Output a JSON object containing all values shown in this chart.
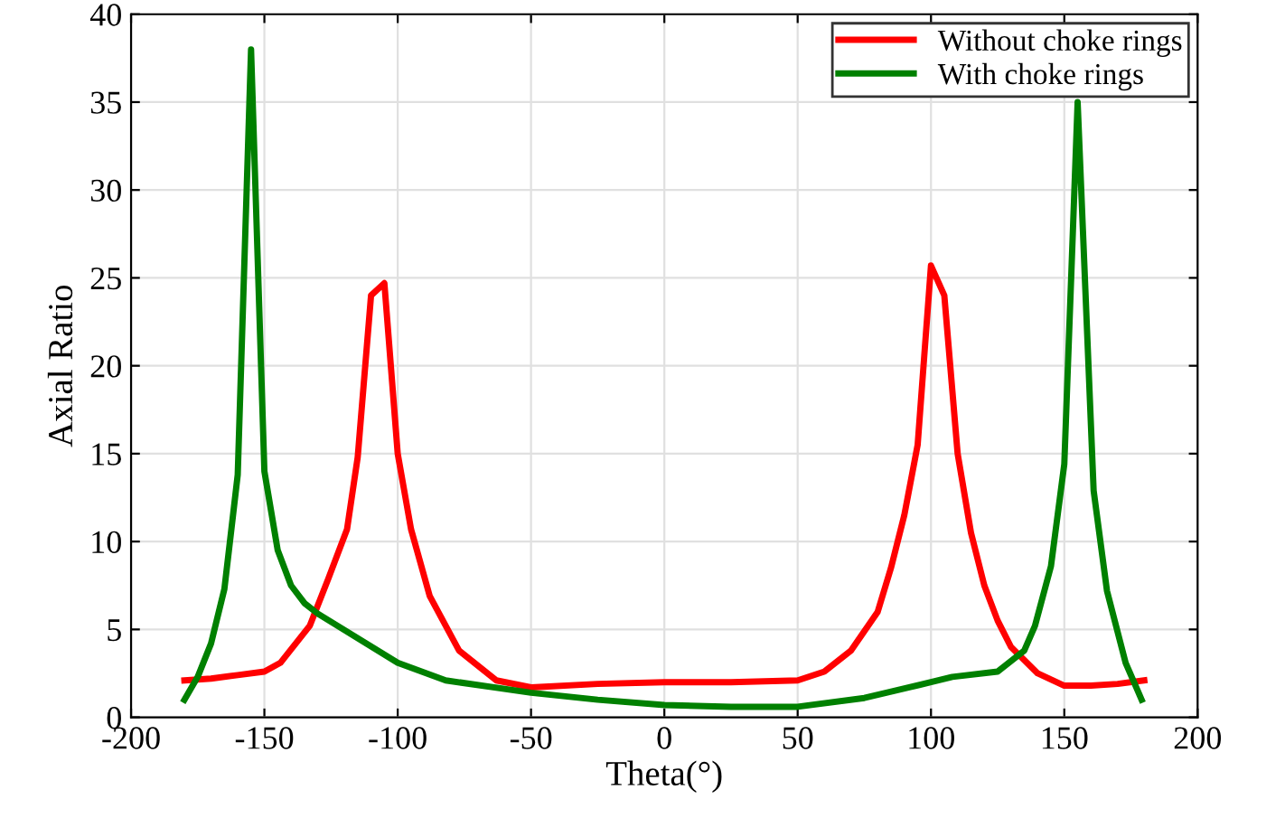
{
  "chart_data": {
    "type": "line",
    "xlabel": "Theta(°)",
    "ylabel": "Axial Ratio",
    "xlim": [
      -200,
      200
    ],
    "ylim": [
      0,
      40
    ],
    "xticks": [
      -200,
      -150,
      -100,
      -50,
      0,
      50,
      100,
      150,
      200
    ],
    "yticks": [
      0,
      5,
      10,
      15,
      20,
      25,
      30,
      35,
      40
    ],
    "grid": true,
    "legend": "top right",
    "marker": "none",
    "line_style": "solid",
    "series": [
      {
        "name": "Without choke rings",
        "color": "#ff0000",
        "x": [
          -180,
          -170,
          -160,
          -150,
          -144,
          -133,
          -126,
          -119,
          -115,
          -110,
          -105,
          -100,
          -95,
          -88,
          -77,
          -63,
          -50,
          -25,
          0,
          25,
          50,
          60,
          70,
          80,
          85,
          90,
          95,
          100,
          105,
          110,
          115,
          120,
          125,
          130,
          140,
          150,
          160,
          170,
          180
        ],
        "values": [
          2.1,
          2.2,
          2.4,
          2.6,
          3.1,
          5.2,
          7.9,
          10.7,
          14.8,
          24,
          24.7,
          15,
          10.7,
          6.9,
          3.8,
          2.1,
          1.7,
          1.9,
          2.0,
          2.0,
          2.1,
          2.6,
          3.8,
          6.0,
          8.5,
          11.5,
          15.5,
          25.7,
          24,
          15,
          10.5,
          7.5,
          5.5,
          4.0,
          2.5,
          1.8,
          1.8,
          1.9,
          2.1
        ]
      },
      {
        "name": "With choke rings",
        "color": "#008000",
        "x": [
          -180,
          -175,
          -170,
          -165,
          -160,
          -155,
          -150,
          -145,
          -140,
          -135,
          -130,
          -100,
          -82,
          -50,
          -25,
          0,
          25,
          50,
          75,
          100,
          108,
          125,
          135,
          139,
          145,
          150,
          155,
          161,
          166,
          173,
          179
        ],
        "values": [
          1.0,
          2.3,
          4.2,
          7.3,
          13.8,
          38,
          14,
          9.5,
          7.5,
          6.5,
          5.9,
          3.1,
          2.1,
          1.4,
          1.0,
          0.7,
          0.6,
          0.6,
          1.1,
          2.0,
          2.3,
          2.6,
          3.8,
          5.2,
          8.6,
          14.4,
          35,
          12.9,
          7.2,
          3.1,
          1.0
        ]
      }
    ]
  }
}
